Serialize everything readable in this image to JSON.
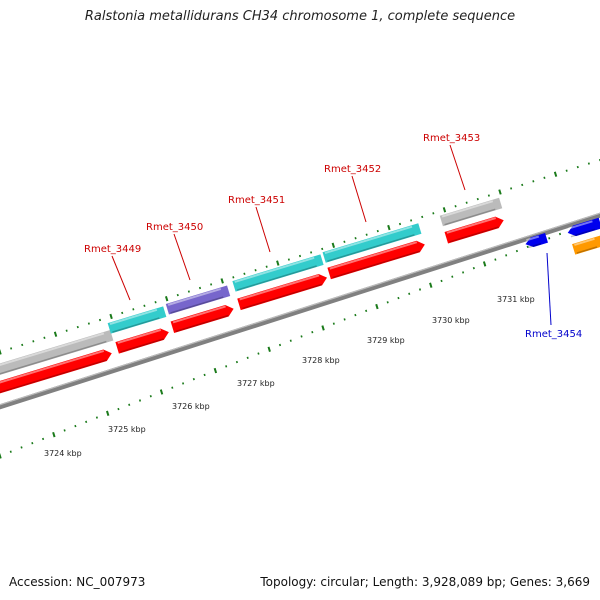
{
  "title": "Ralstonia metallidurans CH34 chromosome 1, complete sequence",
  "footer": {
    "accession": "Accession: NC_007973",
    "summary": "Topology: circular; Length: 3,928,089 bp; Genes: 3,669"
  },
  "colors": {
    "backbone": "#808080",
    "forward_cds": "#ff0000",
    "reverse_cds": "#0000ee",
    "cyan_feature": "#33cccc",
    "purple_feature": "#7766cc",
    "grey_feature": "#bbbbbb",
    "orange_feature": "#ff9900",
    "tick": "#1a7a1a",
    "forward_label": "#cc0000",
    "reverse_label": "#0000cc"
  },
  "scale_labels": [
    "3724 kbp",
    "3725 kbp",
    "3726 kbp",
    "3727 kbp",
    "3728 kbp",
    "3729 kbp",
    "3730 kbp",
    "3731 kbp"
  ],
  "gene_labels": [
    {
      "text": "Rmet_3449",
      "strand": "forward"
    },
    {
      "text": "Rmet_3450",
      "strand": "forward"
    },
    {
      "text": "Rmet_3451",
      "strand": "forward"
    },
    {
      "text": "Rmet_3452",
      "strand": "forward"
    },
    {
      "text": "Rmet_3453",
      "strand": "forward"
    },
    {
      "text": "Rmet_3454",
      "strand": "reverse"
    }
  ]
}
